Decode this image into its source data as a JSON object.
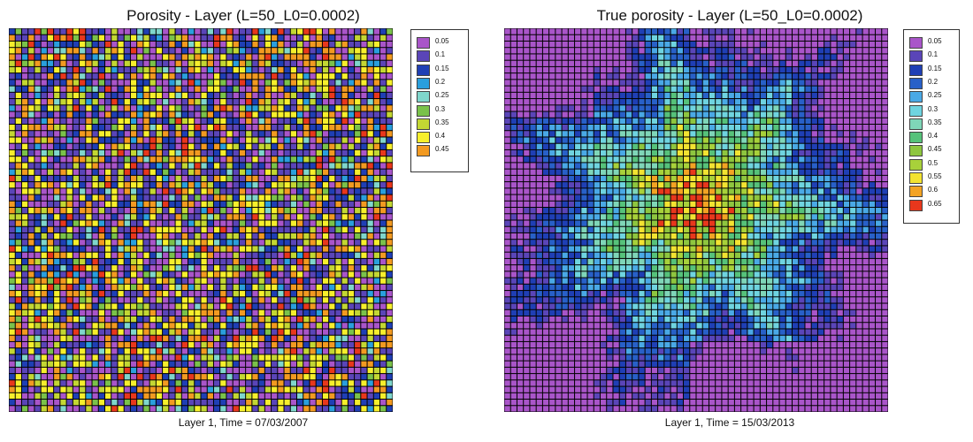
{
  "chart_data": [
    {
      "type": "heatmap",
      "title": "Porosity - Layer (L=50_L0=0.0002)",
      "xlabel": "Layer 1, Time = 07/03/2007",
      "ylabel": "",
      "grid": true,
      "legend_position": "right",
      "grid_cells": [
        60,
        60
      ],
      "pattern": "scattered",
      "legend": {
        "labels": [
          "0.05",
          "0.1",
          "0.15",
          "0.2",
          "0.25",
          "0.3",
          "0.35",
          "0.4",
          "0.45"
        ],
        "colors": [
          "#a955c9",
          "#5a45b8",
          "#1f3fb5",
          "#2a9fdd",
          "#7fd6cc",
          "#7ac24a",
          "#c3d733",
          "#f6ef2c",
          "#f29a21",
          "#e8371c"
        ]
      }
    },
    {
      "type": "heatmap",
      "title": "True porosity - Layer (L=50_L0=0.0002)",
      "xlabel": "Layer 1, Time = 15/03/2013",
      "ylabel": "",
      "grid": true,
      "legend_position": "right",
      "grid_cells": [
        60,
        60
      ],
      "pattern": "radial",
      "legend": {
        "labels": [
          "0.05",
          "0.1",
          "0.15",
          "0.2",
          "0.25",
          "0.3",
          "0.35",
          "0.4",
          "0.45",
          "0.5",
          "0.55",
          "0.6",
          "0.65"
        ],
        "colors": [
          "#a955c9",
          "#5a45b8",
          "#1f3fb5",
          "#2860c8",
          "#4aa9e6",
          "#6fd4e0",
          "#7fd6b8",
          "#56c27a",
          "#8ec63f",
          "#a8d13a",
          "#f3e331",
          "#f3a323",
          "#e8371c"
        ]
      }
    }
  ]
}
